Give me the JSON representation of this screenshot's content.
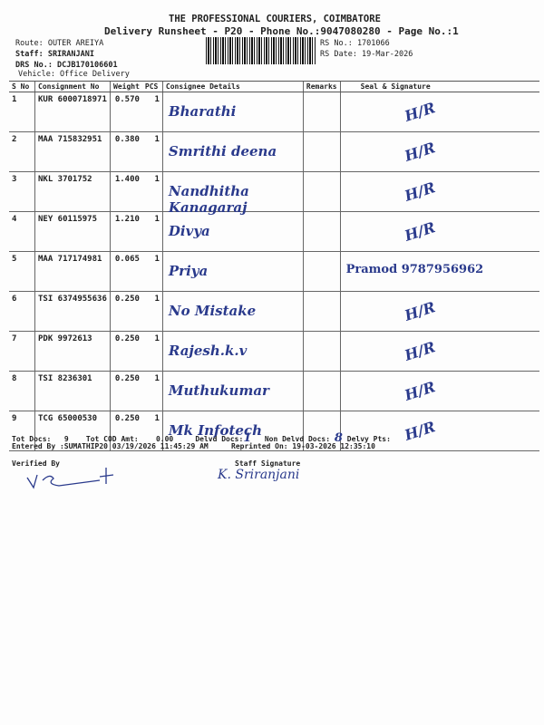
{
  "header": {
    "company": "THE PROFESSIONAL COURIERS, COIMBATORE",
    "subtitle": "Delivery Runsheet - P20 - Phone No.:9047080280 - Page No.:1",
    "route": "Route: OUTER AREIYA",
    "staff": "Staff: SRIRANJANI",
    "drs_no": "DRS No.: DCJB170106601",
    "vehicle": "Vehicle: Office Delivery",
    "rs_no": "RS No.: 1701066",
    "rs_date": "RS Date: 19-Mar-2026"
  },
  "table": {
    "columns": [
      "S No",
      "Consignment No",
      "Weight",
      "PCS",
      "Consignee Details",
      "Remarks",
      "Seal & Signature"
    ],
    "rows": [
      {
        "sno": "1",
        "cn": "KUR 6000718971",
        "wt": "0.570",
        "pcs": "1",
        "consignee": "Bharathi",
        "remarks": "",
        "seal": "H/R"
      },
      {
        "sno": "2",
        "cn": "MAA 715832951",
        "wt": "0.380",
        "pcs": "1",
        "consignee": "Smrithi deena",
        "remarks": "",
        "seal": "H/R"
      },
      {
        "sno": "3",
        "cn": "NKL 3701752",
        "wt": "1.400",
        "pcs": "1",
        "consignee": "Nandhitha Kanagaraj",
        "remarks": "",
        "seal": "H/R"
      },
      {
        "sno": "4",
        "cn": "NEY 60115975",
        "wt": "1.210",
        "pcs": "1",
        "consignee": "Divya",
        "remarks": "",
        "seal": "H/R"
      },
      {
        "sno": "5",
        "cn": "MAA 717174981",
        "wt": "0.065",
        "pcs": "1",
        "consignee": "Priya",
        "remarks": "",
        "seal": "Pramod 9787956962"
      },
      {
        "sno": "6",
        "cn": "TSI 6374955636",
        "wt": "0.250",
        "pcs": "1",
        "consignee": "No Mistake",
        "remarks": "",
        "seal": "H/R"
      },
      {
        "sno": "7",
        "cn": "PDK 9972613",
        "wt": "0.250",
        "pcs": "1",
        "consignee": "Rajesh.k.v",
        "remarks": "",
        "seal": "H/R"
      },
      {
        "sno": "8",
        "cn": "TSI 8236301",
        "wt": "0.250",
        "pcs": "1",
        "consignee": "Muthukumar",
        "remarks": "",
        "seal": "H/R"
      },
      {
        "sno": "9",
        "cn": "TCG 65000530",
        "wt": "0.250",
        "pcs": "1",
        "consignee": "Mk Infotech",
        "remarks": "",
        "seal": "H/R"
      }
    ]
  },
  "footer": {
    "tot_docs_label": "Tot Docs:",
    "tot_docs": "9",
    "cod_label": "Tot COD Amt:",
    "cod": "0.00",
    "delvd_label": "Delvd Docs:",
    "delvd": "1",
    "non_delvd_label": "Non Delvd Docs:",
    "non_delvd": "8",
    "delvy_pts_label": "Delvy Pts:",
    "entered_by": "Entered By :SUMATHIP20 03/19/2026 11:45:29 AM",
    "reprinted": "Reprinted On: 19-03-2026 12:35:10",
    "verified_by": "Verified By",
    "staff_signature": "Staff Signature",
    "staff_sign_hand": "K. Sriranjani"
  },
  "colors": {
    "ink": "#2a3a8c",
    "text": "#222222"
  }
}
